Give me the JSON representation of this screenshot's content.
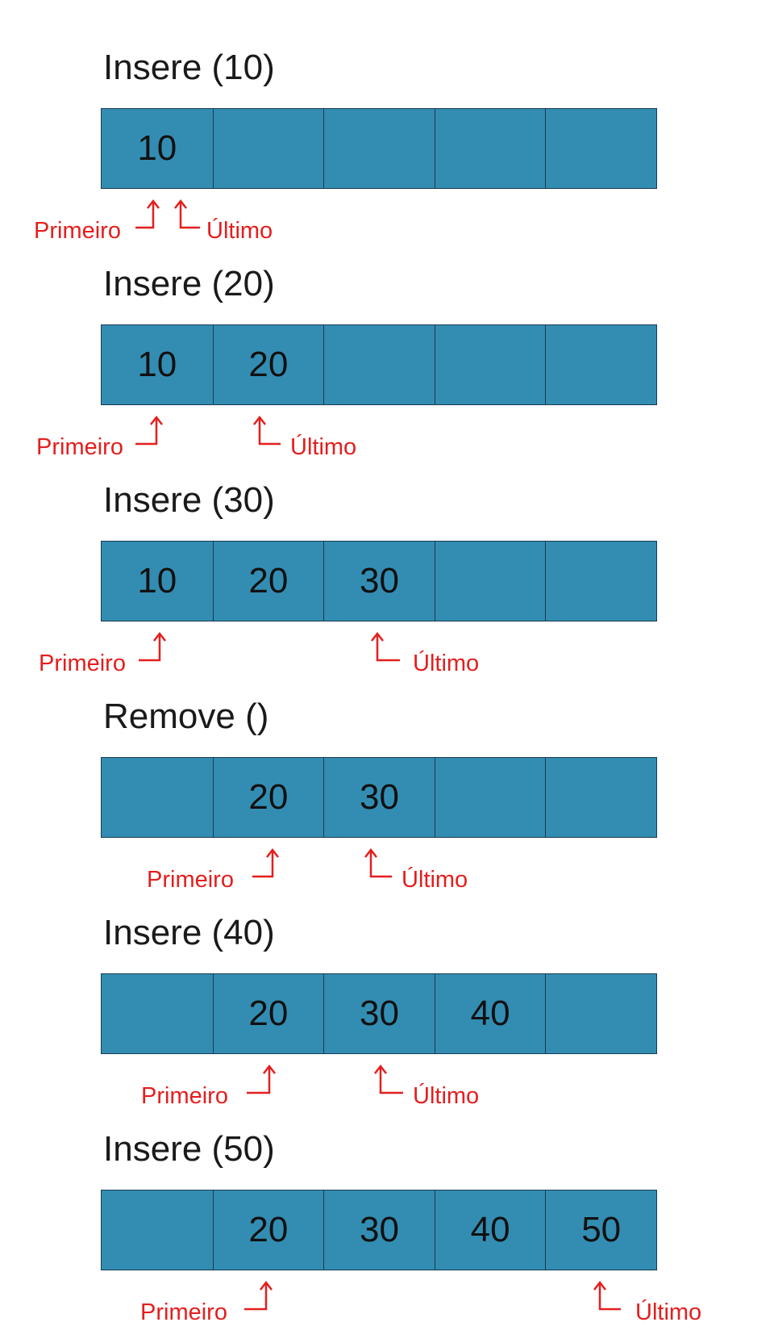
{
  "steps": [
    {
      "title": "Insere (10)",
      "cells": [
        "10",
        "",
        "",
        "",
        ""
      ],
      "first_label": "Primeiro",
      "last_label": "Último"
    },
    {
      "title": "Insere (20)",
      "cells": [
        "10",
        "20",
        "",
        "",
        ""
      ],
      "first_label": "Primeiro",
      "last_label": "Último"
    },
    {
      "title": "Insere (30)",
      "cells": [
        "10",
        "20",
        "30",
        "",
        ""
      ],
      "first_label": "Primeiro",
      "last_label": "Último"
    },
    {
      "title": "Remove ()",
      "cells": [
        "",
        "20",
        "30",
        "",
        ""
      ],
      "first_label": "Primeiro",
      "last_label": "Último"
    },
    {
      "title": "Insere (40)",
      "cells": [
        "",
        "20",
        "30",
        "40",
        ""
      ],
      "first_label": "Primeiro",
      "last_label": "Último"
    },
    {
      "title": "Insere (50)",
      "cells": [
        "",
        "20",
        "30",
        "40",
        "50"
      ],
      "first_label": "Primeiro",
      "last_label": "Último"
    }
  ],
  "colors": {
    "cell": "#338db2",
    "border": "#1b3a4f",
    "pointer": "#e41e1e",
    "text": "#111111"
  }
}
